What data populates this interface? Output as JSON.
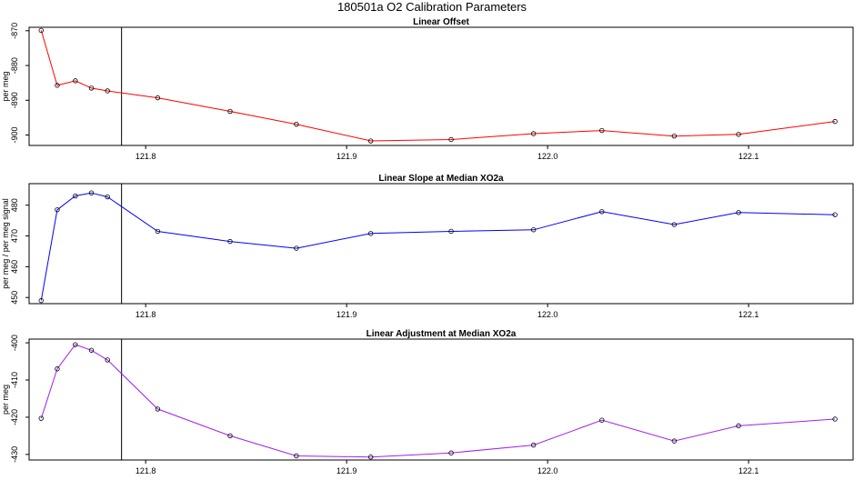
{
  "title": "180501a   O2 Calibration Parameters",
  "chart_data": [
    {
      "type": "line",
      "title": "Linear Offset",
      "xlabel": "",
      "ylabel": "per meg",
      "color": "#ff0000",
      "vline_x": 121.788,
      "xlim": [
        121.742,
        122.152
      ],
      "ylim": [
        -903,
        -869
      ],
      "x_ticks": [
        "121.8",
        "121.9",
        "122.0",
        "122.1"
      ],
      "y_ticks": [
        "-870",
        "-880",
        "-890",
        "-900"
      ],
      "x": [
        121.748,
        121.756,
        121.765,
        121.773,
        121.781,
        121.806,
        121.842,
        121.875,
        121.912,
        121.952,
        121.993,
        122.027,
        122.063,
        122.095,
        122.143
      ],
      "y": [
        -869.9,
        -885.7,
        -884.4,
        -886.5,
        -887.3,
        -889.3,
        -893.2,
        -896.9,
        -901.7,
        -901.3,
        -899.6,
        -898.7,
        -900.3,
        -899.8,
        -896.1
      ]
    },
    {
      "type": "line",
      "title": "Linear Slope at Median XO2a",
      "xlabel": "",
      "ylabel": "per meg / per meg signal",
      "color": "#0000ff",
      "vline_x": 121.788,
      "xlim": [
        121.742,
        122.152
      ],
      "ylim": [
        448,
        487
      ],
      "x_ticks": [
        "121.8",
        "121.9",
        "122.0",
        "122.1"
      ],
      "y_ticks": [
        "450",
        "460",
        "470",
        "480"
      ],
      "x": [
        121.748,
        121.756,
        121.765,
        121.773,
        121.781,
        121.806,
        121.842,
        121.875,
        121.912,
        121.952,
        121.993,
        122.027,
        122.063,
        122.095,
        122.143
      ],
      "y": [
        449.0,
        478.5,
        483.0,
        484.0,
        482.7,
        471.5,
        468.2,
        466.0,
        470.8,
        471.5,
        472.0,
        477.9,
        473.7,
        477.6,
        476.9
      ]
    },
    {
      "type": "line",
      "title": "Linear Adjustment at Median XO2a",
      "xlabel": "",
      "ylabel": "per meg",
      "color": "#a020f0",
      "vline_x": 121.788,
      "xlim": [
        121.742,
        122.152
      ],
      "ylim": [
        -431.5,
        -399
      ],
      "x_ticks": [
        "121.8",
        "121.9",
        "122.0",
        "122.1"
      ],
      "y_ticks": [
        "-400",
        "-410",
        "-420",
        "-430"
      ],
      "x": [
        121.748,
        121.756,
        121.765,
        121.773,
        121.781,
        121.806,
        121.842,
        121.875,
        121.912,
        121.952,
        121.993,
        122.027,
        122.063,
        122.095,
        122.143
      ],
      "y": [
        -420.3,
        -407.0,
        -400.5,
        -402.0,
        -404.6,
        -417.8,
        -425.0,
        -430.4,
        -430.7,
        -429.6,
        -427.5,
        -420.8,
        -426.4,
        -422.3,
        -420.5
      ]
    }
  ]
}
